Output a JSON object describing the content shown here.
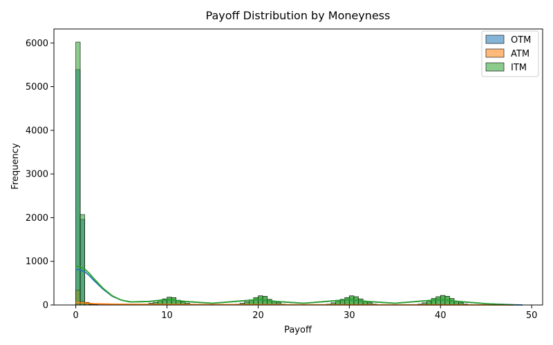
{
  "chart_data": {
    "type": "bar",
    "title": "Payoff Distribution by Moneyness",
    "xlabel": "Payoff",
    "ylabel": "Frequency",
    "xlim": [
      -2.4,
      51.2
    ],
    "ylim": [
      0,
      6320
    ],
    "xticks": [
      0,
      10,
      20,
      30,
      40,
      50
    ],
    "yticks": [
      0,
      1000,
      2000,
      3000,
      4000,
      5000,
      6000
    ],
    "legend_position": "top-right",
    "series": [
      {
        "name": "OTM",
        "color": "#1f77b4",
        "bar_start": 0,
        "bar_width": 0.487,
        "values": [
          5390,
          1960,
          60,
          20,
          10,
          5
        ],
        "kde_x": [
          0,
          0.5,
          1,
          1.5,
          2,
          3,
          4,
          5,
          6,
          8,
          10,
          12,
          15,
          18,
          20,
          22,
          25,
          28,
          30,
          32,
          35,
          38,
          40,
          42,
          45,
          48,
          49
        ],
        "kde_y": [
          820,
          800,
          760,
          670,
          560,
          360,
          200,
          110,
          70,
          80,
          120,
          80,
          40,
          90,
          120,
          80,
          40,
          90,
          120,
          80,
          40,
          90,
          120,
          80,
          30,
          5,
          0
        ]
      },
      {
        "name": "ATM",
        "color": "#ff7f0e",
        "bar_start": 0,
        "bar_width": 0.487,
        "values": [
          340,
          80,
          40,
          30,
          25,
          20,
          18,
          15,
          12,
          10,
          8,
          6,
          5,
          4,
          3
        ],
        "kde_x": [
          0,
          1,
          2,
          4,
          6,
          10,
          15,
          20,
          25,
          30,
          35,
          40,
          45,
          48
        ],
        "kde_y": [
          60,
          45,
          30,
          20,
          15,
          12,
          10,
          8,
          6,
          5,
          4,
          3,
          2,
          0
        ]
      },
      {
        "name": "ITM",
        "color": "#2ca02c",
        "bar_start": 0,
        "bar_width": 0.487,
        "values": [
          6020,
          2070,
          40,
          15,
          10,
          5
        ],
        "kde_x": [
          0,
          0.5,
          1,
          1.5,
          2,
          3,
          4,
          5,
          6,
          8,
          10,
          12,
          15,
          18,
          20,
          22,
          25,
          28,
          30,
          32,
          35,
          38,
          40,
          42,
          45,
          48
        ],
        "kde_y": [
          890,
          870,
          820,
          720,
          600,
          380,
          210,
          110,
          70,
          80,
          125,
          80,
          40,
          90,
          125,
          80,
          40,
          90,
          125,
          80,
          40,
          90,
          125,
          80,
          30,
          0
        ]
      }
    ],
    "clusters": [
      {
        "series": "ITM",
        "bars": [
          [
            7.5,
            20
          ],
          [
            8,
            40
          ],
          [
            8.5,
            60
          ],
          [
            9,
            100
          ],
          [
            9.5,
            140
          ],
          [
            10,
            180
          ],
          [
            10.5,
            170
          ],
          [
            11,
            110
          ],
          [
            11.5,
            70
          ],
          [
            12,
            40
          ],
          [
            12.5,
            20
          ],
          [
            17.5,
            20
          ],
          [
            18,
            40
          ],
          [
            18.5,
            70
          ],
          [
            19,
            120
          ],
          [
            19.5,
            170
          ],
          [
            20,
            210
          ],
          [
            20.5,
            200
          ],
          [
            21,
            130
          ],
          [
            21.5,
            80
          ],
          [
            22,
            50
          ],
          [
            22.5,
            20
          ],
          [
            27.5,
            20
          ],
          [
            28,
            50
          ],
          [
            28.5,
            90
          ],
          [
            29,
            130
          ],
          [
            29.5,
            170
          ],
          [
            30,
            210
          ],
          [
            30.5,
            190
          ],
          [
            31,
            140
          ],
          [
            31.5,
            90
          ],
          [
            32,
            50
          ],
          [
            32.5,
            20
          ],
          [
            37.5,
            20
          ],
          [
            38,
            50
          ],
          [
            38.5,
            90
          ],
          [
            39,
            150
          ],
          [
            39.5,
            190
          ],
          [
            40,
            220
          ],
          [
            40.5,
            200
          ],
          [
            41,
            150
          ],
          [
            41.5,
            90
          ],
          [
            42,
            50
          ],
          [
            42.5,
            20
          ]
        ]
      }
    ]
  }
}
